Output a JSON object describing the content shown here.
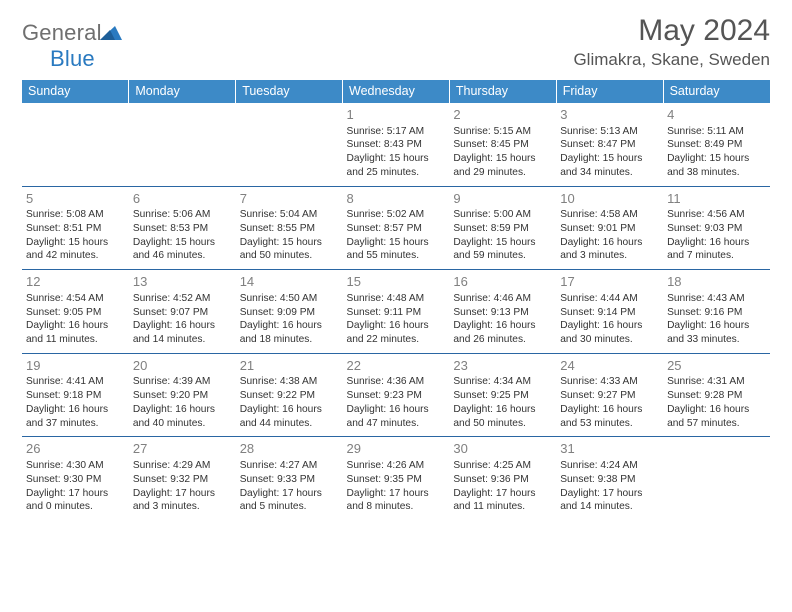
{
  "logo": {
    "general": "General",
    "blue": "Blue"
  },
  "colors": {
    "header_bg": "#3d8ac7",
    "row_border": "#2a66a3",
    "daynum": "#808080",
    "brand_blue": "#2a7ac0",
    "brand_gray": "#6f6f6f",
    "text": "#333333",
    "title": "#555555"
  },
  "title": {
    "month": "May 2024",
    "location": "Glimakra, Skane, Sweden"
  },
  "weekdays": [
    "Sunday",
    "Monday",
    "Tuesday",
    "Wednesday",
    "Thursday",
    "Friday",
    "Saturday"
  ],
  "grid": {
    "cols": 7,
    "rows": 5,
    "font_size_cell": 10.2,
    "font_size_daynum": 13,
    "font_size_header": 12.5
  },
  "weeks": [
    [
      null,
      null,
      null,
      {
        "n": "1",
        "sr": "5:17 AM",
        "ss": "8:43 PM",
        "dl": "15 hours and 25 minutes."
      },
      {
        "n": "2",
        "sr": "5:15 AM",
        "ss": "8:45 PM",
        "dl": "15 hours and 29 minutes."
      },
      {
        "n": "3",
        "sr": "5:13 AM",
        "ss": "8:47 PM",
        "dl": "15 hours and 34 minutes."
      },
      {
        "n": "4",
        "sr": "5:11 AM",
        "ss": "8:49 PM",
        "dl": "15 hours and 38 minutes."
      }
    ],
    [
      {
        "n": "5",
        "sr": "5:08 AM",
        "ss": "8:51 PM",
        "dl": "15 hours and 42 minutes."
      },
      {
        "n": "6",
        "sr": "5:06 AM",
        "ss": "8:53 PM",
        "dl": "15 hours and 46 minutes."
      },
      {
        "n": "7",
        "sr": "5:04 AM",
        "ss": "8:55 PM",
        "dl": "15 hours and 50 minutes."
      },
      {
        "n": "8",
        "sr": "5:02 AM",
        "ss": "8:57 PM",
        "dl": "15 hours and 55 minutes."
      },
      {
        "n": "9",
        "sr": "5:00 AM",
        "ss": "8:59 PM",
        "dl": "15 hours and 59 minutes."
      },
      {
        "n": "10",
        "sr": "4:58 AM",
        "ss": "9:01 PM",
        "dl": "16 hours and 3 minutes."
      },
      {
        "n": "11",
        "sr": "4:56 AM",
        "ss": "9:03 PM",
        "dl": "16 hours and 7 minutes."
      }
    ],
    [
      {
        "n": "12",
        "sr": "4:54 AM",
        "ss": "9:05 PM",
        "dl": "16 hours and 11 minutes."
      },
      {
        "n": "13",
        "sr": "4:52 AM",
        "ss": "9:07 PM",
        "dl": "16 hours and 14 minutes."
      },
      {
        "n": "14",
        "sr": "4:50 AM",
        "ss": "9:09 PM",
        "dl": "16 hours and 18 minutes."
      },
      {
        "n": "15",
        "sr": "4:48 AM",
        "ss": "9:11 PM",
        "dl": "16 hours and 22 minutes."
      },
      {
        "n": "16",
        "sr": "4:46 AM",
        "ss": "9:13 PM",
        "dl": "16 hours and 26 minutes."
      },
      {
        "n": "17",
        "sr": "4:44 AM",
        "ss": "9:14 PM",
        "dl": "16 hours and 30 minutes."
      },
      {
        "n": "18",
        "sr": "4:43 AM",
        "ss": "9:16 PM",
        "dl": "16 hours and 33 minutes."
      }
    ],
    [
      {
        "n": "19",
        "sr": "4:41 AM",
        "ss": "9:18 PM",
        "dl": "16 hours and 37 minutes."
      },
      {
        "n": "20",
        "sr": "4:39 AM",
        "ss": "9:20 PM",
        "dl": "16 hours and 40 minutes."
      },
      {
        "n": "21",
        "sr": "4:38 AM",
        "ss": "9:22 PM",
        "dl": "16 hours and 44 minutes."
      },
      {
        "n": "22",
        "sr": "4:36 AM",
        "ss": "9:23 PM",
        "dl": "16 hours and 47 minutes."
      },
      {
        "n": "23",
        "sr": "4:34 AM",
        "ss": "9:25 PM",
        "dl": "16 hours and 50 minutes."
      },
      {
        "n": "24",
        "sr": "4:33 AM",
        "ss": "9:27 PM",
        "dl": "16 hours and 53 minutes."
      },
      {
        "n": "25",
        "sr": "4:31 AM",
        "ss": "9:28 PM",
        "dl": "16 hours and 57 minutes."
      }
    ],
    [
      {
        "n": "26",
        "sr": "4:30 AM",
        "ss": "9:30 PM",
        "dl": "17 hours and 0 minutes."
      },
      {
        "n": "27",
        "sr": "4:29 AM",
        "ss": "9:32 PM",
        "dl": "17 hours and 3 minutes."
      },
      {
        "n": "28",
        "sr": "4:27 AM",
        "ss": "9:33 PM",
        "dl": "17 hours and 5 minutes."
      },
      {
        "n": "29",
        "sr": "4:26 AM",
        "ss": "9:35 PM",
        "dl": "17 hours and 8 minutes."
      },
      {
        "n": "30",
        "sr": "4:25 AM",
        "ss": "9:36 PM",
        "dl": "17 hours and 11 minutes."
      },
      {
        "n": "31",
        "sr": "4:24 AM",
        "ss": "9:38 PM",
        "dl": "17 hours and 14 minutes."
      },
      null
    ]
  ],
  "labels": {
    "sunrise": "Sunrise:",
    "sunset": "Sunset:",
    "daylight": "Daylight:"
  }
}
